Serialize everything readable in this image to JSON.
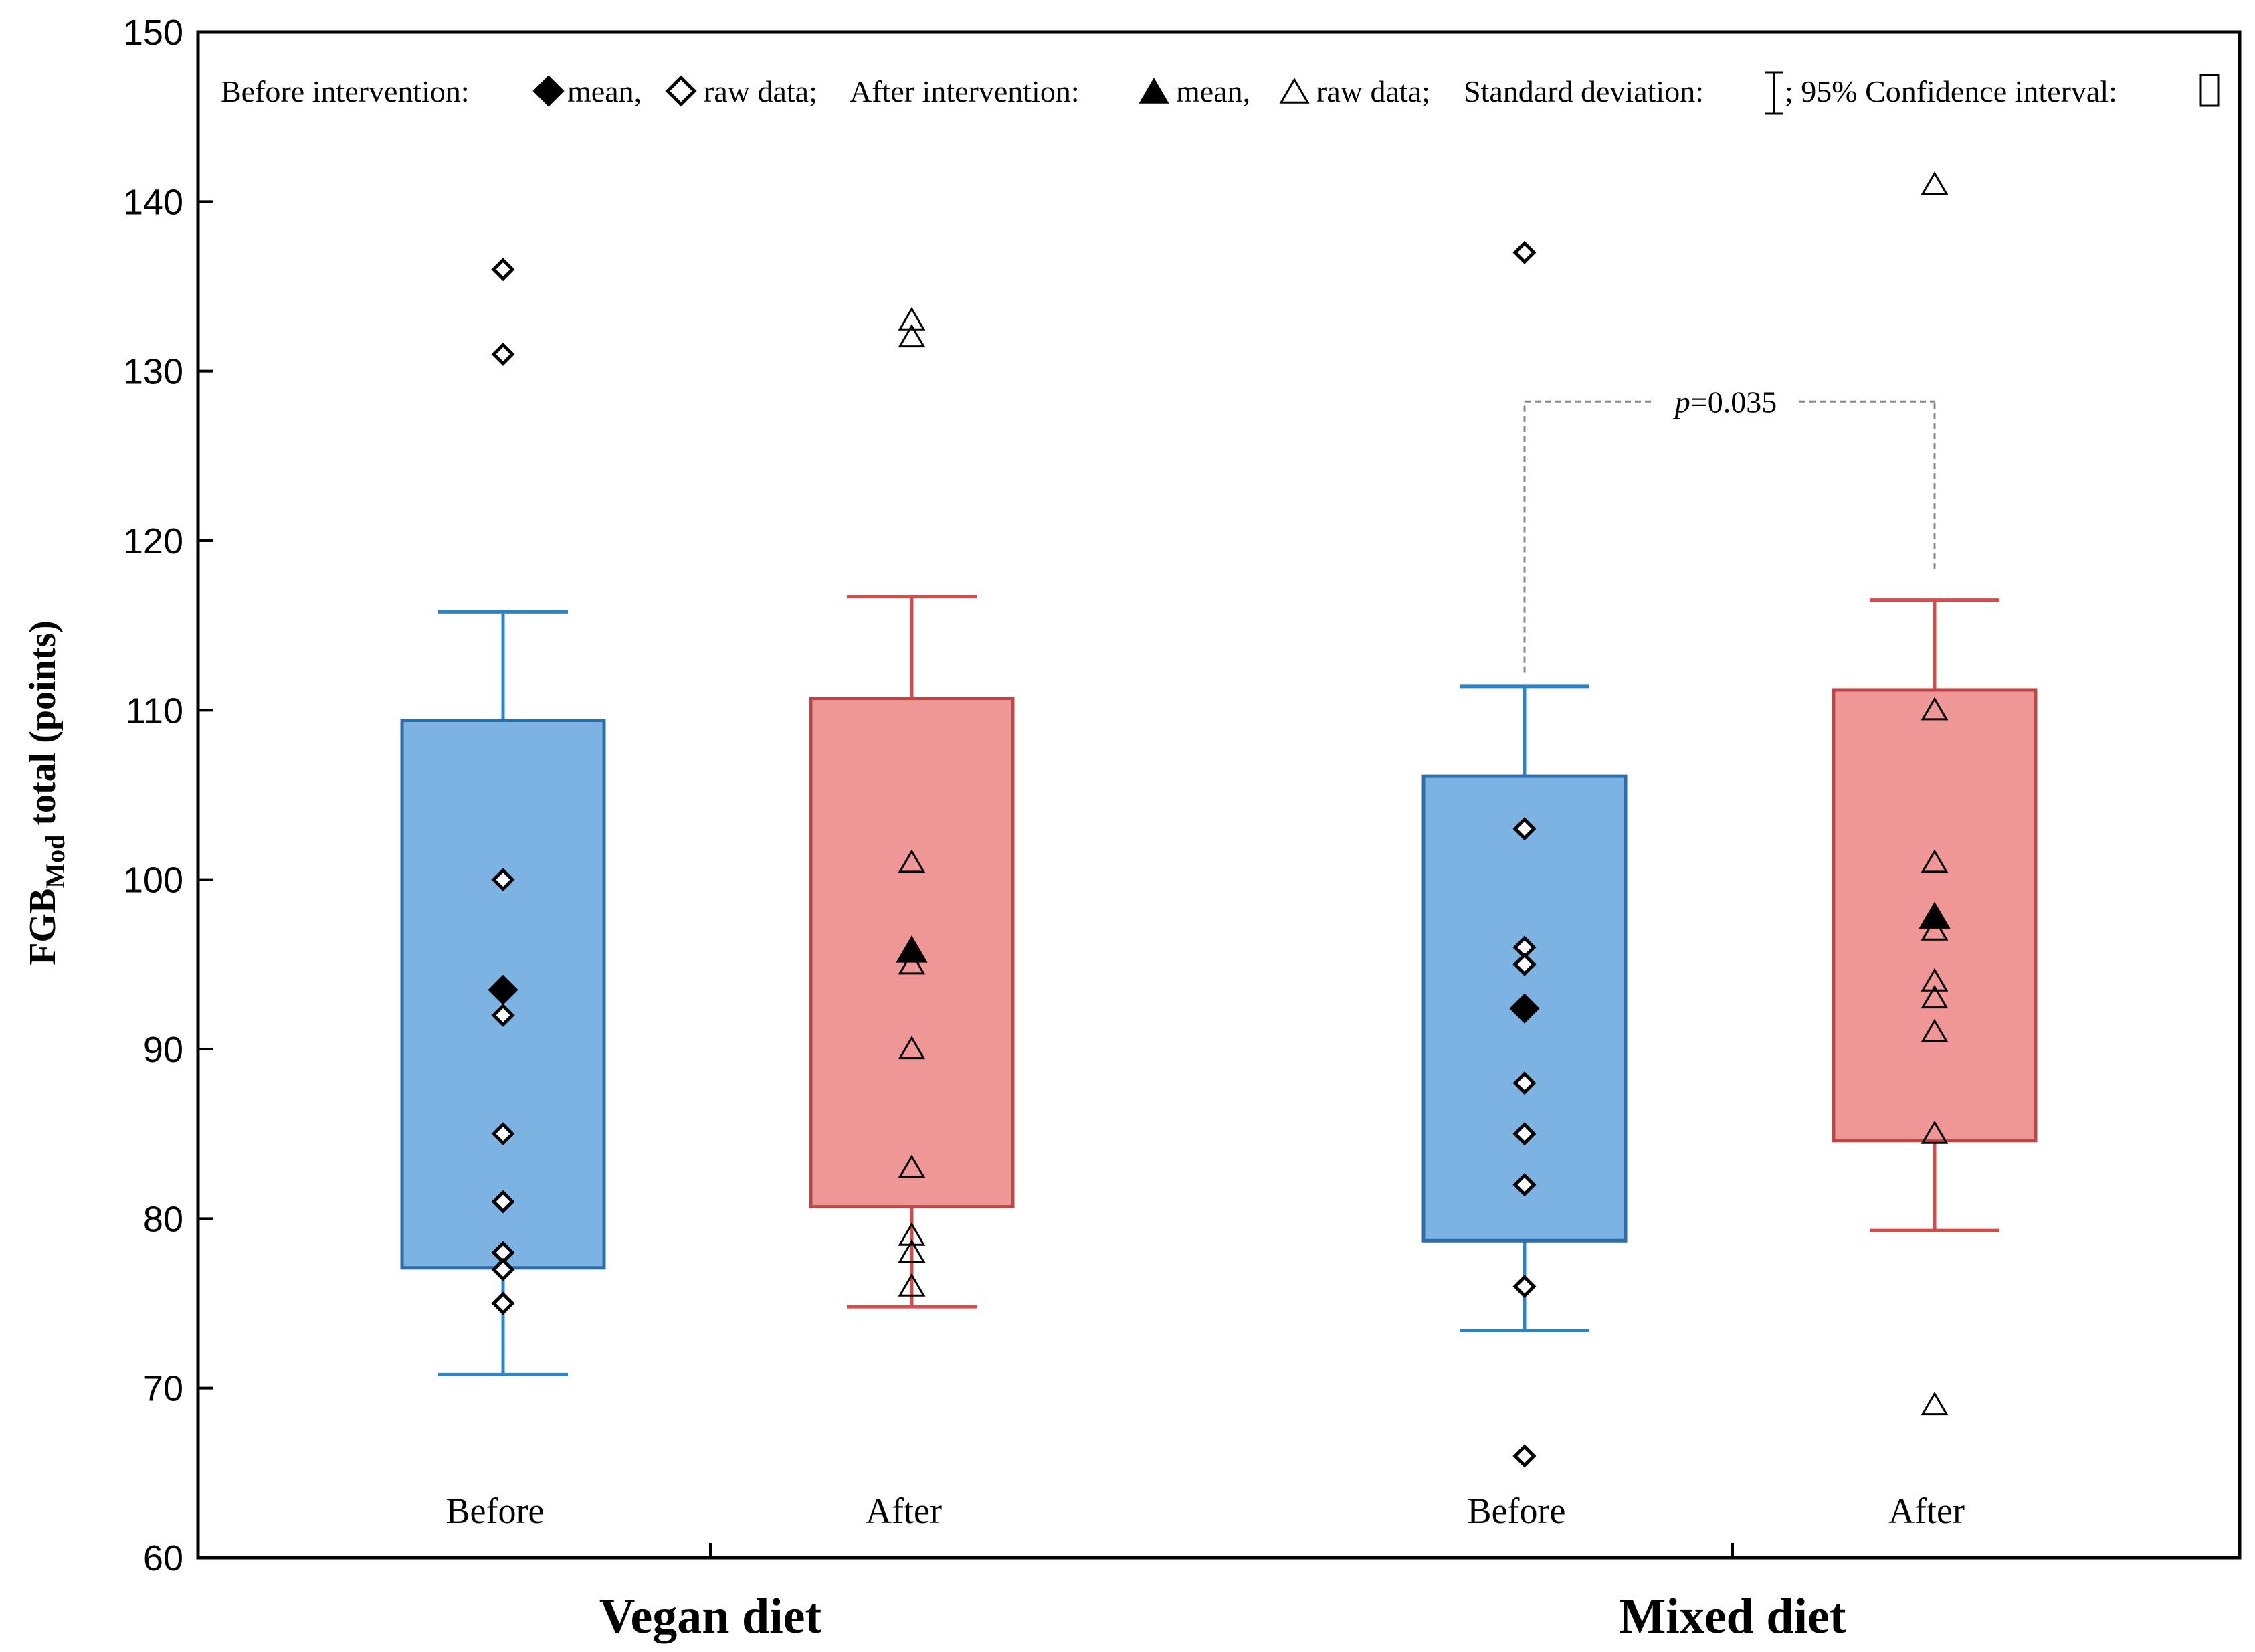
{
  "chart_data": {
    "type": "box",
    "title": "",
    "xlabel": "",
    "ylabel": {
      "prefix": "FGB",
      "subscript": "Mod",
      "suffix": " total (points)"
    },
    "ylim": [
      60,
      150
    ],
    "yticks": [
      60,
      70,
      80,
      90,
      100,
      110,
      120,
      130,
      140,
      150
    ],
    "legend": {
      "position": "top",
      "before_label": "Before intervention:",
      "mean_label": "mean,",
      "raw_label": "raw data;",
      "after_label": "After intervention:",
      "mean_label_2": "mean,",
      "raw_label_2": "raw data;",
      "sd_label": "Standard deviation:",
      "ci_label": "; 95% Confidence interval:"
    },
    "groups": [
      {
        "name": "Vegan diet",
        "conditions": [
          {
            "label": "Before",
            "color": "#7db3e3",
            "edge": "#2e6ea8",
            "whisker": "#2c84c8",
            "marker": "diamond",
            "mean": 93.5,
            "ci": [
              77.1,
              109.4
            ],
            "sd": [
              70.8,
              115.8
            ],
            "raw": [
              136,
              131,
              100,
              92,
              85,
              81,
              78,
              77,
              75
            ]
          },
          {
            "label": "After",
            "color": "#ee9796",
            "edge": "#b84848",
            "whisker": "#d94a4a",
            "marker": "triangle",
            "mean": 95.8,
            "ci": [
              80.7,
              110.7
            ],
            "sd": [
              74.8,
              116.7
            ],
            "raw": [
              133,
              132,
              101,
              95,
              90,
              83,
              79,
              78,
              76
            ]
          }
        ]
      },
      {
        "name": "Mixed diet",
        "conditions": [
          {
            "label": "Before",
            "color": "#7db3e3",
            "edge": "#2e6ea8",
            "whisker": "#2c84c8",
            "marker": "diamond",
            "mean": 92.4,
            "ci": [
              78.7,
              106.1
            ],
            "sd": [
              73.4,
              111.4
            ],
            "raw": [
              137,
              103,
              96,
              95,
              88,
              85,
              82,
              76,
              66
            ]
          },
          {
            "label": "After",
            "color": "#ee9796",
            "edge": "#b84848",
            "whisker": "#d94a4a",
            "marker": "triangle",
            "mean": 97.8,
            "ci": [
              84.6,
              111.2
            ],
            "sd": [
              79.3,
              116.5
            ],
            "raw": [
              141,
              110,
              101,
              97,
              94,
              93,
              91,
              85,
              69
            ]
          }
        ]
      }
    ],
    "annotations": [
      {
        "type": "significance",
        "group": 1,
        "between": [
          "Before",
          "After"
        ],
        "p_italic": "p",
        "text": "=0.035",
        "y": 128.2
      }
    ]
  }
}
